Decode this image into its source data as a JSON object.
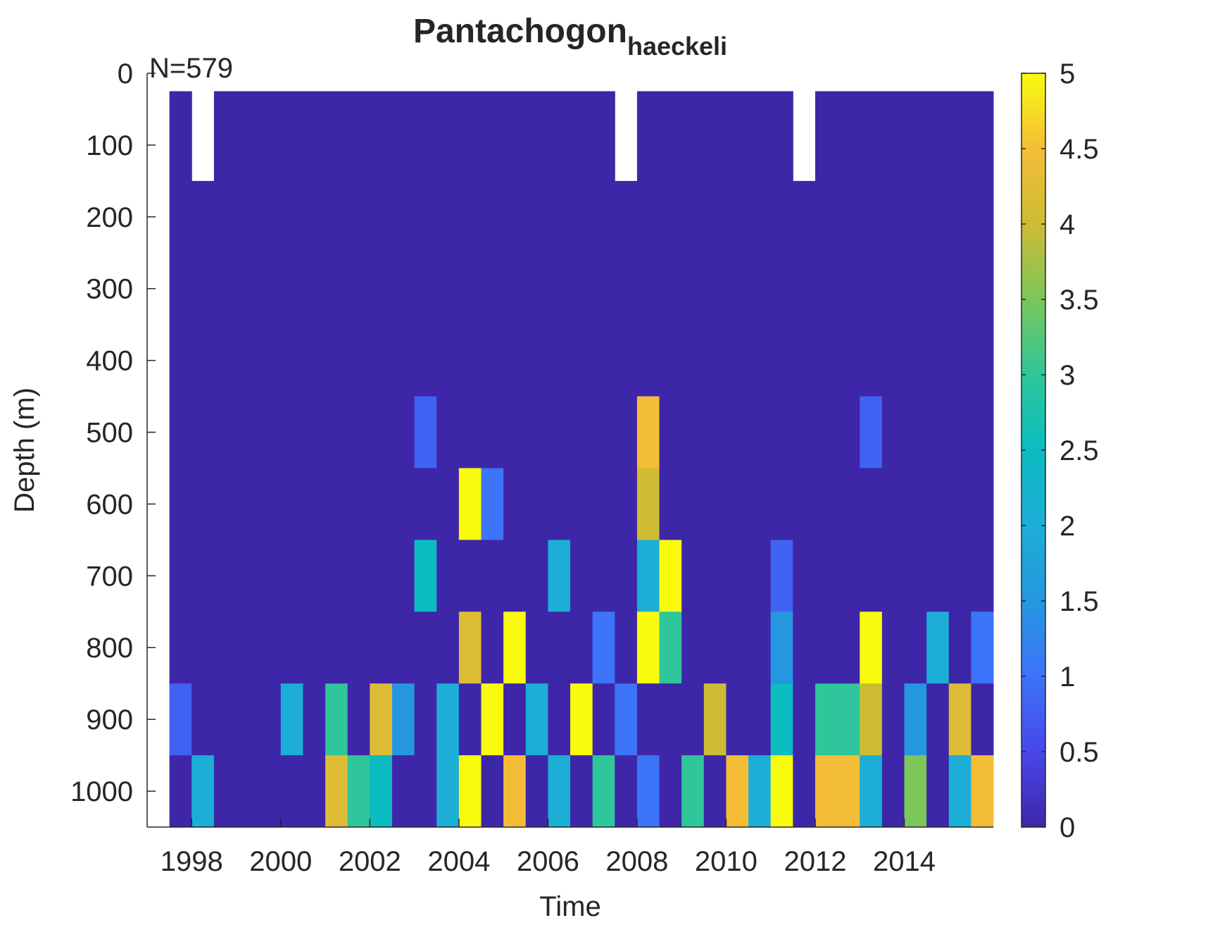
{
  "chart_data": {
    "type": "heatmap",
    "title": "Pantachogon",
    "title_subscript": "haeckeli",
    "annotation": "N=579",
    "xlabel": "Time",
    "ylabel": "Depth (m)",
    "xlim": [
      1997,
      2016
    ],
    "xticks": [
      1998,
      2000,
      2002,
      2004,
      2006,
      2008,
      2010,
      2012,
      2014
    ],
    "ylim": [
      0,
      1050
    ],
    "yticks": [
      0,
      100,
      200,
      300,
      400,
      500,
      600,
      700,
      800,
      900,
      1000
    ],
    "y_reversed": true,
    "clim": [
      0,
      5
    ],
    "cticks": [
      0,
      0.5,
      1,
      1.5,
      2,
      2.5,
      3,
      3.5,
      4,
      4.5,
      5
    ],
    "colormap": [
      [
        0,
        "#3e26a8"
      ],
      [
        0.1,
        "#4747eb"
      ],
      [
        0.2,
        "#3b74f8"
      ],
      [
        0.3,
        "#2597e0"
      ],
      [
        0.4,
        "#1caed6"
      ],
      [
        0.5,
        "#0bbcc0"
      ],
      [
        0.6,
        "#2ec69a"
      ],
      [
        0.7,
        "#7cc65a"
      ],
      [
        0.8,
        "#cdbc34"
      ],
      [
        0.9,
        "#f4bd38"
      ],
      [
        1,
        "#f9fb0e"
      ]
    ],
    "xbins": [
      1997.5,
      1998,
      1998.5,
      1999,
      1999.5,
      2000,
      2000.5,
      2001,
      2001.5,
      2002,
      2002.5,
      2003,
      2003.5,
      2004,
      2004.5,
      2005,
      2005.5,
      2006,
      2006.5,
      2007,
      2007.5,
      2008,
      2008.5,
      2009,
      2009.5,
      2010,
      2010.5,
      2011,
      2011.5,
      2012,
      2012.5,
      2013,
      2013.5,
      2014,
      2014.5,
      2015,
      2015.5,
      2016
    ],
    "ybins": [
      25,
      150,
      250,
      350,
      450,
      550,
      650,
      750,
      850,
      950,
      1050
    ],
    "z": [
      [
        0,
        null,
        0,
        0,
        0,
        0,
        0,
        0,
        0,
        0,
        0,
        0,
        0,
        0,
        0,
        0,
        0,
        0,
        0,
        0,
        null,
        0,
        0,
        0,
        0,
        0,
        0,
        0,
        null,
        0,
        0,
        0,
        0,
        0,
        0,
        0,
        0
      ],
      [
        0,
        0,
        0,
        0,
        0,
        0,
        0,
        0,
        0,
        0,
        0,
        0,
        0,
        0,
        0,
        0,
        0,
        0,
        0,
        0,
        0,
        0,
        0,
        0,
        0,
        0,
        0,
        0,
        0,
        0,
        0,
        0,
        0,
        0,
        0,
        0,
        0
      ],
      [
        0,
        0,
        0,
        0,
        0,
        0,
        0,
        0,
        0,
        0,
        0,
        0,
        0,
        0,
        0,
        0,
        0,
        0,
        0,
        0,
        0,
        0,
        0,
        0,
        0,
        0,
        0,
        0,
        0,
        0,
        0,
        0,
        0,
        0,
        0,
        0,
        0
      ],
      [
        0,
        0,
        0,
        0,
        0,
        0,
        0,
        0,
        0,
        0,
        0,
        0,
        0,
        0,
        0,
        0,
        0,
        0,
        0,
        0,
        0,
        0,
        0,
        0,
        0,
        0,
        0,
        0,
        0,
        0,
        0,
        0,
        0,
        0,
        0,
        0,
        0
      ],
      [
        0,
        0,
        0,
        0,
        0,
        0,
        0,
        0,
        0,
        0,
        0,
        0.8,
        0,
        0,
        0,
        0,
        0,
        0,
        0,
        0,
        0,
        4.5,
        0,
        0,
        0,
        0,
        0,
        0,
        0,
        0,
        0,
        0.8,
        0,
        0,
        0,
        0,
        0
      ],
      [
        0,
        0,
        0,
        0,
        0,
        0,
        0,
        0,
        0,
        0,
        0,
        0,
        0,
        5,
        1,
        0,
        0,
        0,
        0,
        0,
        0,
        4,
        0,
        0,
        0,
        0,
        0,
        0,
        0,
        0,
        0,
        0,
        0,
        0,
        0,
        0,
        0
      ],
      [
        0,
        0,
        0,
        0,
        0,
        0,
        0,
        0,
        0,
        0,
        0,
        2.5,
        0,
        0,
        0,
        0,
        0,
        2,
        0,
        0,
        0,
        2,
        5,
        0,
        0,
        0,
        0,
        0.8,
        0,
        0,
        0,
        0,
        0,
        0,
        0,
        0,
        0
      ],
      [
        0,
        0,
        0,
        0,
        0,
        0,
        0,
        0,
        0,
        0,
        0,
        0,
        0,
        4.2,
        0,
        5,
        0,
        0,
        0,
        1,
        0,
        5,
        3,
        0,
        0,
        0,
        0,
        1.5,
        0,
        0,
        0,
        5,
        0,
        0,
        2,
        0,
        1
      ],
      [
        0.8,
        0,
        0,
        0,
        0,
        2,
        0,
        3,
        0,
        4.2,
        1.5,
        0,
        2,
        0,
        5,
        0,
        2,
        0,
        5,
        0,
        1,
        0,
        0,
        0,
        4,
        0,
        0,
        2.5,
        0,
        3,
        3,
        4,
        0,
        1.5,
        0,
        4.2,
        0
      ],
      [
        0,
        2,
        0,
        0,
        0,
        0,
        0,
        4.2,
        3,
        2.5,
        0,
        0,
        2,
        5,
        0,
        4.5,
        0,
        2,
        0,
        3,
        0,
        1,
        0,
        3,
        0,
        4.5,
        2,
        5,
        0,
        4.5,
        4.5,
        2,
        0,
        3.5,
        0,
        2,
        4.5
      ]
    ]
  }
}
